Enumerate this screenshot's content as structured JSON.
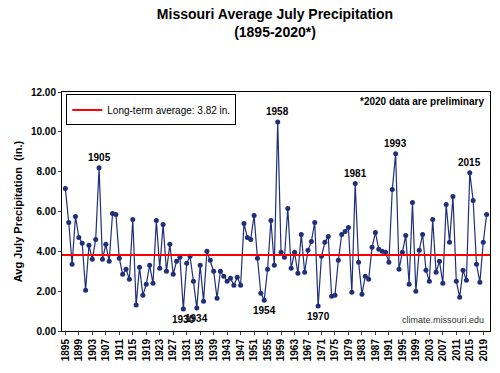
{
  "chart_data": {
    "type": "line",
    "title": "Missouri Average July Precipitation",
    "subtitle": "(1895-2020*)",
    "y_label": "Avg July Precipitation  (in.)",
    "x": [
      1895,
      1896,
      1897,
      1898,
      1899,
      1900,
      1901,
      1902,
      1903,
      1904,
      1905,
      1906,
      1907,
      1908,
      1909,
      1910,
      1911,
      1912,
      1913,
      1914,
      1915,
      1916,
      1917,
      1918,
      1919,
      1920,
      1921,
      1922,
      1923,
      1924,
      1925,
      1926,
      1927,
      1928,
      1929,
      1930,
      1931,
      1932,
      1933,
      1934,
      1935,
      1936,
      1937,
      1938,
      1939,
      1940,
      1941,
      1942,
      1943,
      1944,
      1945,
      1946,
      1947,
      1948,
      1949,
      1950,
      1951,
      1952,
      1953,
      1954,
      1955,
      1956,
      1957,
      1958,
      1959,
      1960,
      1961,
      1962,
      1963,
      1964,
      1965,
      1966,
      1967,
      1968,
      1969,
      1970,
      1971,
      1972,
      1973,
      1974,
      1975,
      1976,
      1977,
      1978,
      1979,
      1980,
      1981,
      1982,
      1983,
      1984,
      1985,
      1986,
      1987,
      1988,
      1989,
      1990,
      1991,
      1992,
      1993,
      1994,
      1995,
      1996,
      1997,
      1998,
      1999,
      2000,
      2001,
      2002,
      2003,
      2004,
      2005,
      2006,
      2007,
      2008,
      2009,
      2010,
      2011,
      2012,
      2013,
      2014,
      2015,
      2016,
      2017,
      2018,
      2019,
      2020
    ],
    "values": [
      7.15,
      5.45,
      3.35,
      5.75,
      4.7,
      4.4,
      2.05,
      4.3,
      3.6,
      4.6,
      8.2,
      3.6,
      4.35,
      3.5,
      5.9,
      5.85,
      3.65,
      2.85,
      3.1,
      2.6,
      5.6,
      1.3,
      3.2,
      1.8,
      2.35,
      3.3,
      2.4,
      5.55,
      3.15,
      5.35,
      3.0,
      4.35,
      2.85,
      3.5,
      3.7,
      1.1,
      3.4,
      3.75,
      2.5,
      1.15,
      3.3,
      1.5,
      4.0,
      3.55,
      3.0,
      1.65,
      3.0,
      2.75,
      2.5,
      2.65,
      2.3,
      2.7,
      2.3,
      5.4,
      4.7,
      4.6,
      5.8,
      3.65,
      1.9,
      1.55,
      3.1,
      5.55,
      3.3,
      10.5,
      3.95,
      3.7,
      6.15,
      3.15,
      3.95,
      2.9,
      4.85,
      2.95,
      4.05,
      4.5,
      5.45,
      1.25,
      3.75,
      4.45,
      4.75,
      1.75,
      1.8,
      3.55,
      4.85,
      5.0,
      5.2,
      1.95,
      7.4,
      3.45,
      1.85,
      2.75,
      2.6,
      4.2,
      4.95,
      4.1,
      4.0,
      3.95,
      3.45,
      7.1,
      8.9,
      3.1,
      3.95,
      4.8,
      2.35,
      6.45,
      2.0,
      4.05,
      4.85,
      3.05,
      2.5,
      5.6,
      2.95,
      3.5,
      2.4,
      6.35,
      4.45,
      6.75,
      2.5,
      1.7,
      3.05,
      2.55,
      7.95,
      6.55,
      3.35,
      2.45,
      4.45,
      5.85
    ],
    "color": "#1f2f7a",
    "marker": "circle",
    "line_style": "solid",
    "average": {
      "name": "Long-term average: 3.82 in.",
      "value": 3.82,
      "color": "#ff0000"
    },
    "annotations": [
      {
        "x": 1905,
        "text": "1905"
      },
      {
        "x": 1930,
        "text": "1930"
      },
      {
        "x": 1934,
        "text": "1934"
      },
      {
        "x": 1954,
        "text": "1954"
      },
      {
        "x": 1958,
        "text": "1958"
      },
      {
        "x": 1970,
        "text": "1970"
      },
      {
        "x": 1981,
        "text": "1981"
      },
      {
        "x": 1993,
        "text": "1993"
      },
      {
        "x": 2015,
        "text": "2015"
      }
    ],
    "note": "*2020 data are preliminary",
    "source": "climate.missouri.edu",
    "xlim": [
      1894,
      2021
    ],
    "xticks": [
      1895,
      1899,
      1903,
      1907,
      1911,
      1915,
      1919,
      1923,
      1927,
      1931,
      1935,
      1939,
      1943,
      1947,
      1951,
      1955,
      1959,
      1963,
      1967,
      1971,
      1975,
      1979,
      1983,
      1987,
      1991,
      1995,
      1999,
      2003,
      2007,
      2011,
      2015,
      2019
    ],
    "ylim": [
      0,
      12
    ],
    "yticks": [
      {
        "value": 0,
        "label": "0.00"
      },
      {
        "value": 2,
        "label": "2.00"
      },
      {
        "value": 4,
        "label": "4.00"
      },
      {
        "value": 6,
        "label": "6.00"
      },
      {
        "value": 8,
        "label": "8.00"
      },
      {
        "value": 10,
        "label": "10.00"
      },
      {
        "value": 12,
        "label": "12.00"
      }
    ],
    "grid": false,
    "legend": "upper left"
  }
}
